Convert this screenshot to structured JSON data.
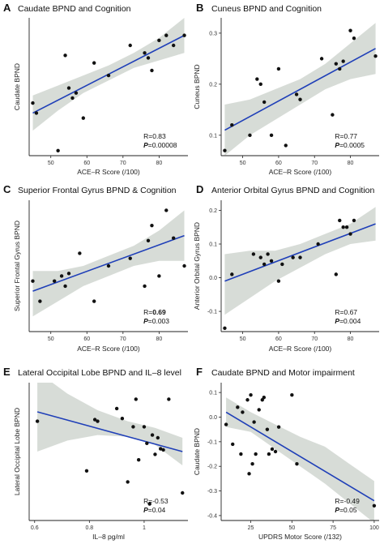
{
  "chart_data": [
    {
      "type": "scatter",
      "letter": "A",
      "title": "Caudate BPND and Cognition",
      "xlabel": "ACE–R Score (/100)",
      "ylabel": "Caudate BPND",
      "xlim": [
        44,
        88
      ],
      "ylim": [
        -0.38,
        0.17
      ],
      "xticks": [
        50,
        60,
        70,
        80
      ],
      "yticks": [],
      "stats": {
        "r": "R=0.83",
        "p_prefix": "P",
        "p_value": "=0.00008"
      },
      "points": [
        [
          45,
          -0.17
        ],
        [
          46,
          -0.21
        ],
        [
          52,
          -0.36
        ],
        [
          54,
          0.02
        ],
        [
          55,
          -0.11
        ],
        [
          56,
          -0.15
        ],
        [
          57,
          -0.13
        ],
        [
          59,
          -0.23
        ],
        [
          62,
          -0.01
        ],
        [
          66,
          -0.06
        ],
        [
          72,
          0.06
        ],
        [
          76,
          0.03
        ],
        [
          77,
          0.01
        ],
        [
          78,
          -0.04
        ],
        [
          80,
          0.08
        ],
        [
          82,
          0.1
        ],
        [
          84,
          0.06
        ],
        [
          87,
          0.1
        ]
      ],
      "fit": [
        [
          45,
          -0.21
        ],
        [
          87,
          0.1
        ]
      ],
      "band": {
        "x": [
          45,
          52,
          59,
          66,
          73,
          80,
          87
        ],
        "lower": [
          -0.28,
          -0.2,
          -0.13,
          -0.08,
          -0.03,
          0.0,
          0.03
        ],
        "upper": [
          -0.14,
          -0.1,
          -0.06,
          -0.02,
          0.03,
          0.09,
          0.17
        ]
      }
    },
    {
      "type": "scatter",
      "letter": "B",
      "title": "Cuneus BPND and Cognition",
      "xlabel": "ACE–R Score (/100)",
      "ylabel": "Cuneus BPND",
      "xlim": [
        44,
        88
      ],
      "ylim": [
        0.06,
        0.33
      ],
      "xticks": [
        50,
        60,
        70,
        80
      ],
      "yticks": [
        0.1,
        0.2,
        0.3
      ],
      "stats": {
        "r": "R=0.77",
        "p_prefix": "P",
        "p_value": "=0.0005"
      },
      "points": [
        [
          45,
          0.07
        ],
        [
          47,
          0.12
        ],
        [
          52,
          0.1
        ],
        [
          54,
          0.21
        ],
        [
          55,
          0.2
        ],
        [
          56,
          0.165
        ],
        [
          58,
          0.1
        ],
        [
          60,
          0.23
        ],
        [
          62,
          0.08
        ],
        [
          65,
          0.18
        ],
        [
          66,
          0.17
        ],
        [
          72,
          0.25
        ],
        [
          75,
          0.14
        ],
        [
          76,
          0.24
        ],
        [
          77,
          0.23
        ],
        [
          78,
          0.245
        ],
        [
          80,
          0.305
        ],
        [
          81,
          0.29
        ],
        [
          87,
          0.255
        ]
      ],
      "fit": [
        [
          45,
          0.11
        ],
        [
          87,
          0.27
        ]
      ],
      "band": {
        "x": [
          45,
          52,
          59,
          66,
          73,
          80,
          87
        ],
        "lower": [
          0.06,
          0.1,
          0.13,
          0.16,
          0.19,
          0.21,
          0.22
        ],
        "upper": [
          0.16,
          0.17,
          0.19,
          0.21,
          0.24,
          0.28,
          0.32
        ]
      }
    },
    {
      "type": "scatter",
      "letter": "C",
      "title": "Superior Frontal Gyrus BPND & Cognition",
      "xlabel": "ACE–R Score (/100)",
      "ylabel": "Superior Frontal Gyrus BPND",
      "xlim": [
        44,
        88
      ],
      "ylim": [
        -0.07,
        0.19
      ],
      "xticks": [
        50,
        60,
        70,
        80
      ],
      "yticks": [],
      "stats": {
        "r": "R=",
        "r_value": "0.69",
        "p_prefix": "P",
        "p_value": "=0.003"
      },
      "points": [
        [
          45,
          0.03
        ],
        [
          47,
          -0.01
        ],
        [
          51,
          0.03
        ],
        [
          53,
          0.04
        ],
        [
          54,
          0.02
        ],
        [
          55,
          0.045
        ],
        [
          58,
          0.085
        ],
        [
          62,
          -0.01
        ],
        [
          66,
          0.06
        ],
        [
          72,
          0.075
        ],
        [
          76,
          0.02
        ],
        [
          77,
          0.11
        ],
        [
          78,
          0.14
        ],
        [
          80,
          0.04
        ],
        [
          82,
          0.17
        ],
        [
          84,
          0.115
        ],
        [
          87,
          0.06
        ]
      ],
      "fit": [
        [
          45,
          0.01
        ],
        [
          87,
          0.12
        ]
      ],
      "band": {
        "x": [
          45,
          52,
          59,
          66,
          73,
          80,
          87
        ],
        "lower": [
          -0.04,
          -0.01,
          0.02,
          0.04,
          0.06,
          0.07,
          0.07
        ],
        "upper": [
          0.05,
          0.05,
          0.06,
          0.08,
          0.1,
          0.13,
          0.17
        ]
      }
    },
    {
      "type": "scatter",
      "letter": "D",
      "title": "Anterior Orbital Gyrus BPND and Cognition",
      "xlabel": "ACE–R Score (/100)",
      "ylabel": "Anterior Orbital Gyrus BPND",
      "xlim": [
        44,
        88
      ],
      "ylim": [
        -0.16,
        0.23
      ],
      "xticks": [
        50,
        60,
        70,
        80
      ],
      "yticks": [
        -0.1,
        0.0,
        0.1,
        0.2
      ],
      "stats": {
        "r": "R=0.67",
        "p_prefix": "P",
        "p_value": "=0.004"
      },
      "points": [
        [
          45,
          -0.15
        ],
        [
          47,
          0.01
        ],
        [
          53,
          0.07
        ],
        [
          55,
          0.06
        ],
        [
          56,
          0.04
        ],
        [
          57,
          0.07
        ],
        [
          58,
          0.05
        ],
        [
          60,
          -0.01
        ],
        [
          61,
          0.04
        ],
        [
          64,
          0.06
        ],
        [
          66,
          0.06
        ],
        [
          71,
          0.1
        ],
        [
          76,
          0.01
        ],
        [
          77,
          0.17
        ],
        [
          78,
          0.15
        ],
        [
          79,
          0.15
        ],
        [
          80,
          0.13
        ],
        [
          81,
          0.17
        ]
      ],
      "fit": [
        [
          45,
          -0.01
        ],
        [
          87,
          0.16
        ]
      ],
      "band": {
        "x": [
          45,
          52,
          59,
          66,
          73,
          80,
          87
        ],
        "lower": [
          -0.11,
          -0.06,
          -0.01,
          0.03,
          0.07,
          0.1,
          0.11
        ],
        "upper": [
          0.07,
          0.08,
          0.08,
          0.1,
          0.13,
          0.16,
          0.21
        ]
      }
    },
    {
      "type": "scatter",
      "letter": "E",
      "title": "Lateral Occipital Lobe BPND and IL–8 level",
      "xlabel": "IL–8 pg/ml",
      "ylabel": "Lateral Occipital Lobe BPND",
      "xlim": [
        0.58,
        1.16
      ],
      "ylim": [
        -0.14,
        0.11
      ],
      "xticks": [
        0.6,
        0.8,
        1.0
      ],
      "yticks": [],
      "stats": {
        "r": "R=-0.53",
        "p_prefix": "P",
        "p_value": "=0.04"
      },
      "points": [
        [
          0.61,
          0.04
        ],
        [
          0.79,
          -0.05
        ],
        [
          0.82,
          0.043
        ],
        [
          0.83,
          0.04
        ],
        [
          0.9,
          0.063
        ],
        [
          0.92,
          0.045
        ],
        [
          0.94,
          -0.07
        ],
        [
          0.96,
          0.03
        ],
        [
          0.97,
          0.08
        ],
        [
          0.98,
          -0.03
        ],
        [
          1.0,
          0.03
        ],
        [
          1.01,
          0.0
        ],
        [
          1.02,
          -0.11
        ],
        [
          1.03,
          0.015
        ],
        [
          1.04,
          -0.02
        ],
        [
          1.05,
          0.01
        ],
        [
          1.06,
          -0.01
        ],
        [
          1.07,
          -0.012
        ],
        [
          1.09,
          0.08
        ],
        [
          1.14,
          -0.09
        ]
      ],
      "fit": [
        [
          0.61,
          0.057
        ],
        [
          1.14,
          -0.015
        ]
      ],
      "band": {
        "x": [
          0.61,
          0.72,
          0.83,
          0.94,
          1.04,
          1.14
        ],
        "lower": [
          -0.015,
          0.005,
          0.015,
          0.012,
          -0.003,
          -0.04
        ],
        "upper": [
          0.13,
          0.09,
          0.06,
          0.04,
          0.028,
          0.01
        ]
      }
    },
    {
      "type": "scatter",
      "letter": "F",
      "title": "Caudate BPND and Motor impairment",
      "xlabel": "UPDRS Motor Score (/132)",
      "ylabel": "Caudate BPND",
      "xlim": [
        7,
        103
      ],
      "ylim": [
        -0.42,
        0.14
      ],
      "xticks": [
        25,
        50,
        75,
        100
      ],
      "yticks": [
        0.1,
        0.0,
        -0.1,
        -0.2,
        -0.3,
        -0.4
      ],
      "stats": {
        "r": "R=-0.49",
        "p_prefix": "P",
        "p_value": "=0.05"
      },
      "points": [
        [
          10,
          -0.03
        ],
        [
          14,
          -0.11
        ],
        [
          17,
          0.04
        ],
        [
          19,
          -0.15
        ],
        [
          20,
          0.02
        ],
        [
          23,
          0.07
        ],
        [
          24,
          -0.23
        ],
        [
          25,
          0.09
        ],
        [
          26,
          -0.19
        ],
        [
          27,
          -0.02
        ],
        [
          28,
          -0.15
        ],
        [
          30,
          0.03
        ],
        [
          32,
          0.07
        ],
        [
          33,
          0.08
        ],
        [
          35,
          -0.05
        ],
        [
          36,
          -0.15
        ],
        [
          38,
          -0.13
        ],
        [
          40,
          -0.14
        ],
        [
          42,
          -0.04
        ],
        [
          50,
          0.09
        ],
        [
          53,
          -0.19
        ],
        [
          100,
          -0.36
        ]
      ],
      "fit": [
        [
          10,
          0.02
        ],
        [
          100,
          -0.34
        ]
      ],
      "band": {
        "x": [
          10,
          25,
          40,
          55,
          70,
          85,
          100
        ],
        "lower": [
          -0.04,
          -0.06,
          -0.13,
          -0.2,
          -0.27,
          -0.35,
          -0.43
        ],
        "upper": [
          0.08,
          0.02,
          -0.03,
          -0.08,
          -0.12,
          -0.19,
          -0.26
        ]
      }
    }
  ]
}
